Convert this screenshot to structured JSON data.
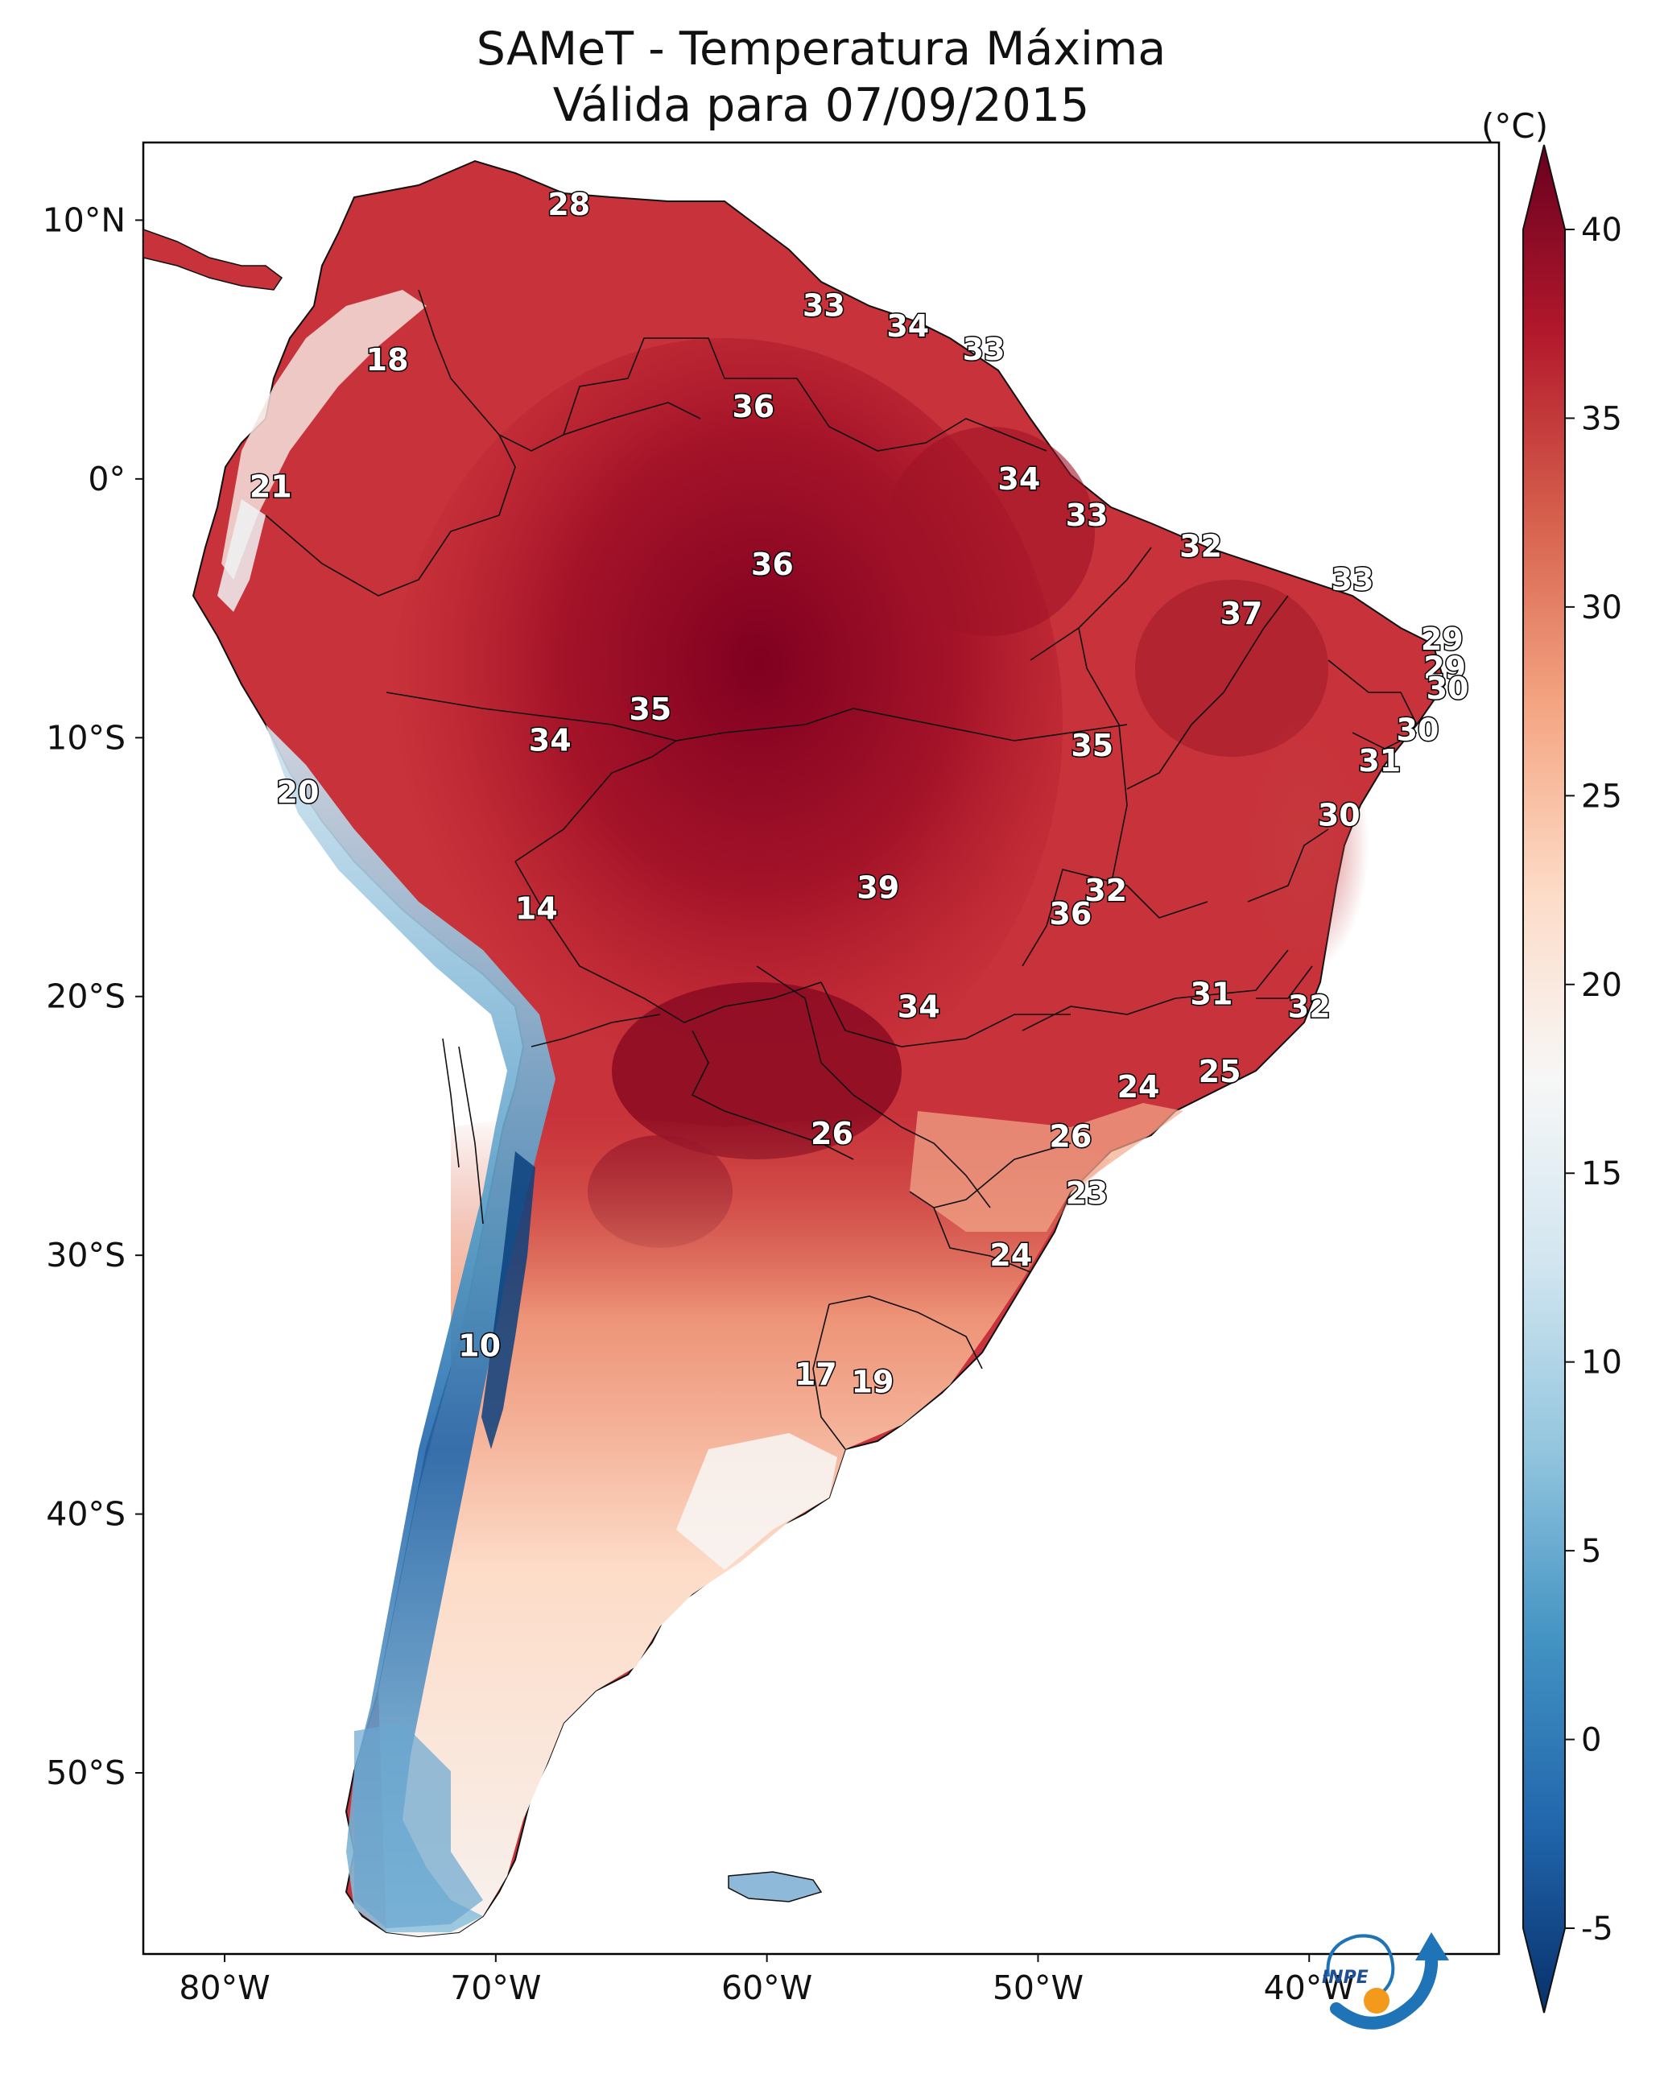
{
  "title": {
    "line1": "SAMeT - Temperatura Máxima",
    "line2": "Válida para 07/09/2015"
  },
  "map": {
    "lon_ticks": [
      "80°W",
      "70°W",
      "60°W",
      "50°W",
      "40°W"
    ],
    "lat_ticks": [
      "10°N",
      "0°",
      "10°S",
      "20°S",
      "30°S",
      "40°S",
      "50°S"
    ],
    "extent": {
      "lon": [
        -83,
        -33
      ],
      "lat": [
        -57,
        13
      ]
    }
  },
  "colorbar": {
    "unit": "(°C)",
    "ticks": [
      "40",
      "35",
      "30",
      "25",
      "20",
      "15",
      "10",
      "5",
      "0",
      "-5"
    ],
    "range": [
      -5,
      40
    ],
    "colors": [
      "#08306b",
      "#2166ac",
      "#4393c3",
      "#92c5de",
      "#d1e5f0",
      "#f7f7f7",
      "#fddbc7",
      "#f4a582",
      "#d6604d",
      "#b2182b",
      "#67001f"
    ]
  },
  "labels": [
    {
      "text": "28",
      "lon": -67.3,
      "lat": 10.6
    },
    {
      "text": "18",
      "lon": -74.0,
      "lat": 4.6
    },
    {
      "text": "33",
      "lon": -57.9,
      "lat": 6.7
    },
    {
      "text": "34",
      "lon": -54.8,
      "lat": 5.9
    },
    {
      "text": "33",
      "lon": -52.0,
      "lat": 5.0
    },
    {
      "text": "36",
      "lon": -60.5,
      "lat": 2.8
    },
    {
      "text": "21",
      "lon": -78.3,
      "lat": -0.3
    },
    {
      "text": "34",
      "lon": -50.7,
      "lat": 0.0
    },
    {
      "text": "33",
      "lon": -48.2,
      "lat": -1.4
    },
    {
      "text": "32",
      "lon": -44.0,
      "lat": -2.6
    },
    {
      "text": "36",
      "lon": -59.8,
      "lat": -3.3
    },
    {
      "text": "33",
      "lon": -38.4,
      "lat": -3.9
    },
    {
      "text": "37",
      "lon": -42.5,
      "lat": -5.2
    },
    {
      "text": "29",
      "lon": -35.1,
      "lat": -6.2
    },
    {
      "text": "29",
      "lon": -35.0,
      "lat": -7.3
    },
    {
      "text": "30",
      "lon": -34.9,
      "lat": -8.1
    },
    {
      "text": "35",
      "lon": -64.3,
      "lat": -8.9
    },
    {
      "text": "34",
      "lon": -68.0,
      "lat": -10.1
    },
    {
      "text": "35",
      "lon": -48.0,
      "lat": -10.3
    },
    {
      "text": "30",
      "lon": -36.0,
      "lat": -9.7
    },
    {
      "text": "31",
      "lon": -37.4,
      "lat": -10.9
    },
    {
      "text": "20",
      "lon": -77.3,
      "lat": -12.1
    },
    {
      "text": "30",
      "lon": -38.9,
      "lat": -13.0
    },
    {
      "text": "39",
      "lon": -55.9,
      "lat": -15.8
    },
    {
      "text": "32",
      "lon": -47.5,
      "lat": -15.9
    },
    {
      "text": "36",
      "lon": -48.8,
      "lat": -16.8
    },
    {
      "text": "14",
      "lon": -68.5,
      "lat": -16.6
    },
    {
      "text": "31",
      "lon": -43.6,
      "lat": -19.9
    },
    {
      "text": "32",
      "lon": -40.0,
      "lat": -20.4
    },
    {
      "text": "34",
      "lon": -54.4,
      "lat": -20.4
    },
    {
      "text": "25",
      "lon": -43.3,
      "lat": -22.9
    },
    {
      "text": "24",
      "lon": -46.3,
      "lat": -23.5
    },
    {
      "text": "26",
      "lon": -57.6,
      "lat": -25.3
    },
    {
      "text": "26",
      "lon": -48.8,
      "lat": -25.4
    },
    {
      "text": "23",
      "lon": -48.2,
      "lat": -27.6
    },
    {
      "text": "24",
      "lon": -51.0,
      "lat": -30.0
    },
    {
      "text": "10",
      "lon": -70.6,
      "lat": -33.5
    },
    {
      "text": "17",
      "lon": -58.2,
      "lat": -34.6
    },
    {
      "text": "19",
      "lon": -56.1,
      "lat": -34.9
    }
  ],
  "logo": {
    "text": "INPE"
  }
}
